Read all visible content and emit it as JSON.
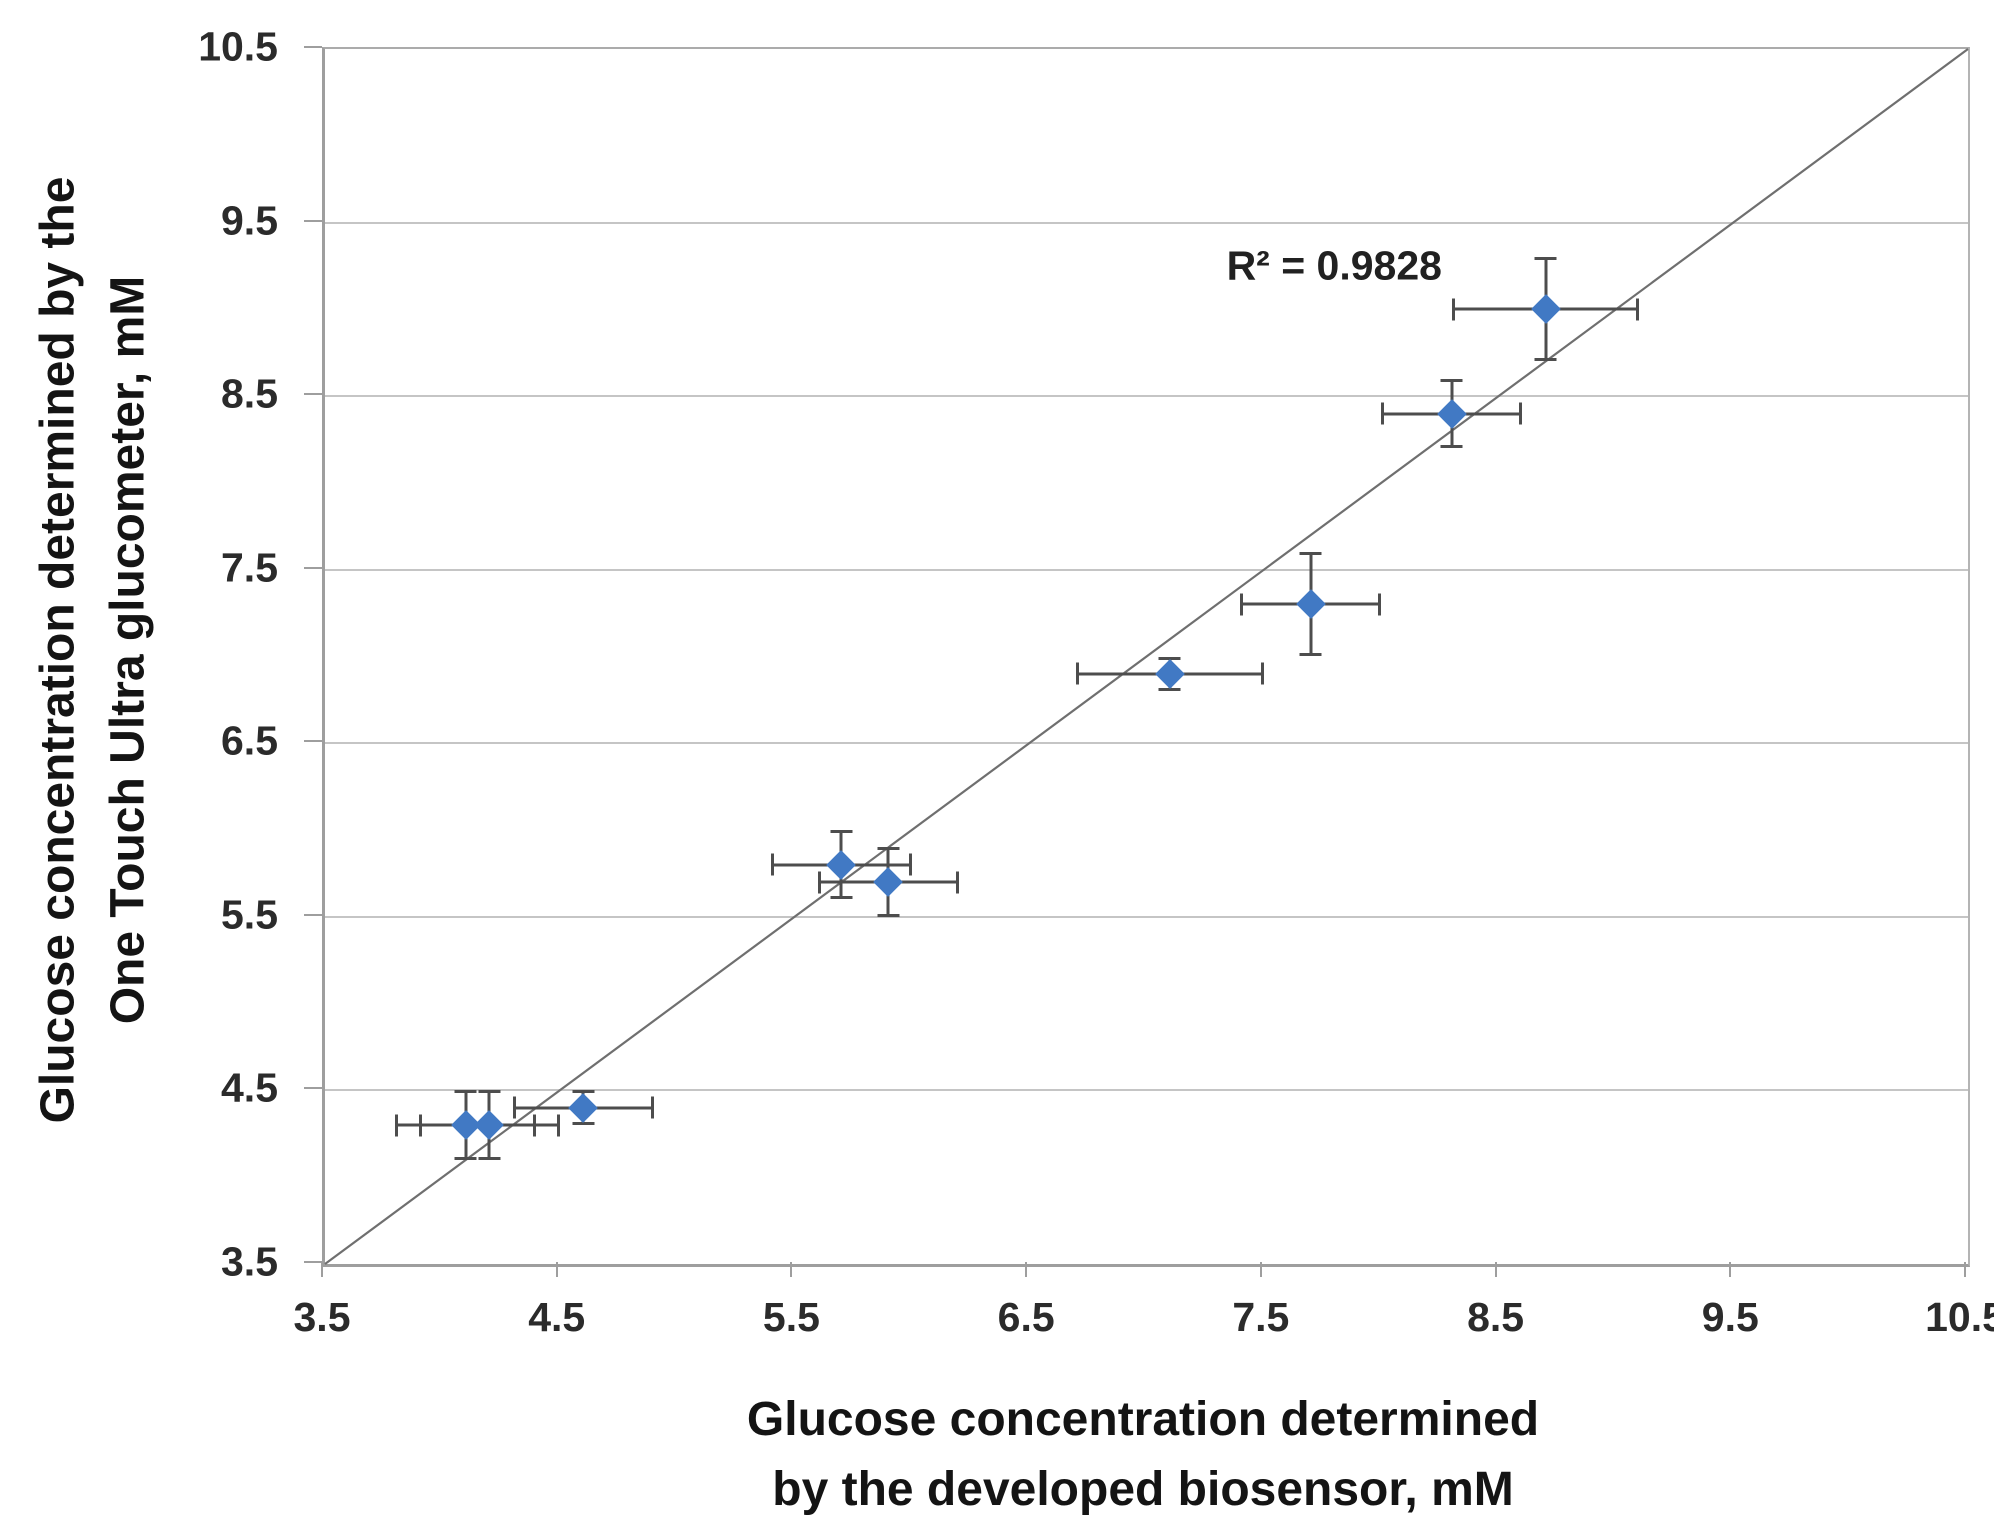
{
  "figure": {
    "kind": "scatter-plot-screenshot",
    "background": "#ffffff"
  },
  "chart_data": {
    "type": "scatter",
    "title": "",
    "xlabel_line1": "Glucose concentration determined",
    "xlabel_line2": "by the developed biosensor, mM",
    "ylabel_line1": "Glucose concentration determined by the",
    "ylabel_line2": "One Touch Ultra glucometer, mM",
    "xlim": [
      3.5,
      10.5
    ],
    "ylim": [
      3.5,
      10.5
    ],
    "x_ticks": [
      3.5,
      4.5,
      5.5,
      6.5,
      7.5,
      8.5,
      9.5,
      10.5
    ],
    "y_ticks": [
      3.5,
      4.5,
      5.5,
      6.5,
      7.5,
      8.5,
      9.5,
      10.5
    ],
    "grid": "horizontal-only",
    "legend": "none",
    "annotation": {
      "text": "R² = 0.9828",
      "x": 7.8,
      "y": 9.25
    },
    "identity_line": {
      "from": [
        3.5,
        3.5
      ],
      "to": [
        10.5,
        10.5
      ]
    },
    "series": [
      {
        "name": "glucose-measurements",
        "marker": "diamond",
        "points": [
          {
            "x": 4.1,
            "y": 4.3,
            "xerr": 0.3,
            "yerr": 0.2
          },
          {
            "x": 4.2,
            "y": 4.3,
            "xerr": 0.3,
            "yerr": 0.2
          },
          {
            "x": 4.6,
            "y": 4.4,
            "xerr": 0.3,
            "yerr": 0.1
          },
          {
            "x": 5.7,
            "y": 5.8,
            "xerr": 0.3,
            "yerr": 0.2
          },
          {
            "x": 5.9,
            "y": 5.7,
            "xerr": 0.3,
            "yerr": 0.2
          },
          {
            "x": 7.1,
            "y": 6.9,
            "xerr": 0.4,
            "yerr": 0.1
          },
          {
            "x": 7.7,
            "y": 7.3,
            "xerr": 0.3,
            "yerr": 0.3
          },
          {
            "x": 8.3,
            "y": 8.4,
            "xerr": 0.3,
            "yerr": 0.2
          },
          {
            "x": 8.7,
            "y": 9.0,
            "xerr": 0.4,
            "yerr": 0.3
          }
        ]
      }
    ]
  },
  "colors": {
    "marker": "#4179c4",
    "error_bar": "#4d4d4d",
    "gridline": "#c5c5c5",
    "axis_line": "#9e9e9e",
    "trendline": "#6f6f6f",
    "text": "#141414"
  }
}
